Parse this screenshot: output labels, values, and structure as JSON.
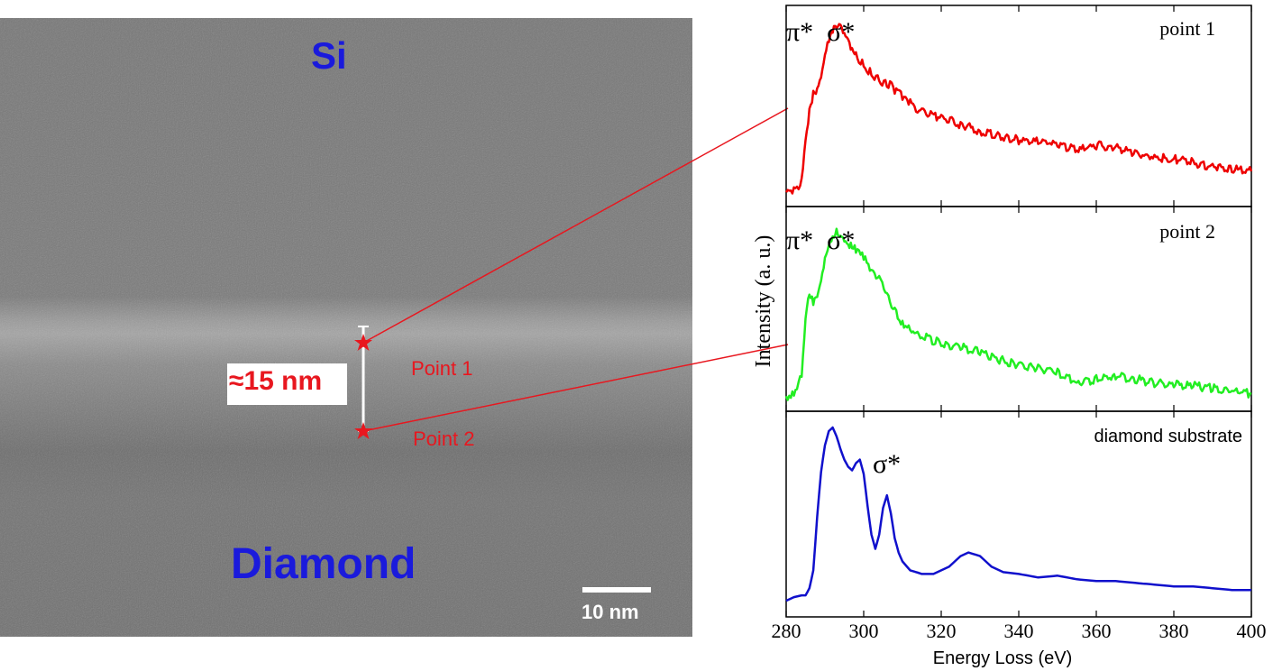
{
  "tem": {
    "region_top": "Si",
    "region_bottom": "Diamond",
    "thickness_label": "≈15 nm",
    "point_labels": [
      "Point 1",
      "Point 2"
    ],
    "scale_bar_label": "10 nm",
    "colors": {
      "region_label": "#1a1adc",
      "annotation": "#e8171f",
      "marker": "#e8171f"
    }
  },
  "chart_data": {
    "type": "line",
    "xlabel": "Energy Loss (eV)",
    "ylabel": "Intensity (a. u.)",
    "xlim": [
      280,
      400
    ],
    "xticks": [
      280,
      300,
      320,
      340,
      360,
      380,
      400
    ],
    "panels": [
      {
        "name": "point 1",
        "color": "#ee0000",
        "annotation": "π*  σ*",
        "x": [
          280,
          282,
          284,
          285,
          286,
          287,
          288,
          289,
          290,
          291,
          292,
          293,
          294,
          295,
          296,
          297,
          298,
          300,
          302,
          304,
          306,
          308,
          310,
          312,
          315,
          320,
          325,
          330,
          335,
          340,
          345,
          350,
          355,
          360,
          365,
          370,
          375,
          380,
          385,
          390,
          395,
          400
        ],
        "y": [
          0.02,
          0.03,
          0.08,
          0.3,
          0.5,
          0.58,
          0.62,
          0.7,
          0.82,
          0.9,
          0.95,
          0.97,
          0.96,
          0.92,
          0.88,
          0.84,
          0.8,
          0.75,
          0.7,
          0.66,
          0.65,
          0.61,
          0.57,
          0.53,
          0.48,
          0.45,
          0.41,
          0.37,
          0.34,
          0.32,
          0.31,
          0.3,
          0.26,
          0.29,
          0.28,
          0.24,
          0.22,
          0.21,
          0.19,
          0.17,
          0.15,
          0.14
        ]
      },
      {
        "name": "point 2",
        "color": "#22ee22",
        "annotation": "π*  σ*",
        "x": [
          280,
          282,
          284,
          285,
          286,
          287,
          288,
          289,
          290,
          291,
          292,
          293,
          294,
          295,
          296,
          297,
          298,
          300,
          302,
          304,
          306,
          308,
          310,
          312,
          315,
          320,
          325,
          330,
          335,
          340,
          345,
          350,
          355,
          360,
          365,
          370,
          375,
          380,
          385,
          390,
          395,
          400
        ],
        "y": [
          0.02,
          0.04,
          0.15,
          0.48,
          0.6,
          0.56,
          0.58,
          0.66,
          0.78,
          0.86,
          0.92,
          0.96,
          0.94,
          0.91,
          0.88,
          0.86,
          0.85,
          0.8,
          0.73,
          0.68,
          0.6,
          0.5,
          0.44,
          0.4,
          0.36,
          0.32,
          0.3,
          0.27,
          0.23,
          0.2,
          0.18,
          0.16,
          0.1,
          0.12,
          0.14,
          0.12,
          0.1,
          0.09,
          0.08,
          0.07,
          0.05,
          0.04
        ]
      },
      {
        "name": "diamond substrate",
        "color": "#1010cc",
        "annotation": "σ*",
        "x": [
          280,
          282,
          284,
          285,
          286,
          287,
          288,
          289,
          290,
          291,
          292,
          293,
          294,
          295,
          296,
          297,
          298,
          299,
          300,
          301,
          302,
          303,
          304,
          305,
          306,
          307,
          308,
          309,
          310,
          312,
          315,
          318,
          322,
          325,
          327,
          330,
          333,
          336,
          340,
          345,
          350,
          355,
          360,
          365,
          370,
          375,
          380,
          385,
          390,
          395,
          400
        ],
        "y": [
          0.03,
          0.05,
          0.06,
          0.06,
          0.1,
          0.2,
          0.5,
          0.75,
          0.9,
          0.98,
          1.0,
          0.95,
          0.88,
          0.82,
          0.78,
          0.76,
          0.8,
          0.82,
          0.74,
          0.56,
          0.4,
          0.32,
          0.4,
          0.55,
          0.62,
          0.52,
          0.38,
          0.3,
          0.25,
          0.2,
          0.18,
          0.18,
          0.22,
          0.28,
          0.3,
          0.28,
          0.22,
          0.19,
          0.18,
          0.16,
          0.17,
          0.15,
          0.14,
          0.14,
          0.13,
          0.12,
          0.11,
          0.11,
          0.1,
          0.09,
          0.09
        ]
      }
    ]
  }
}
